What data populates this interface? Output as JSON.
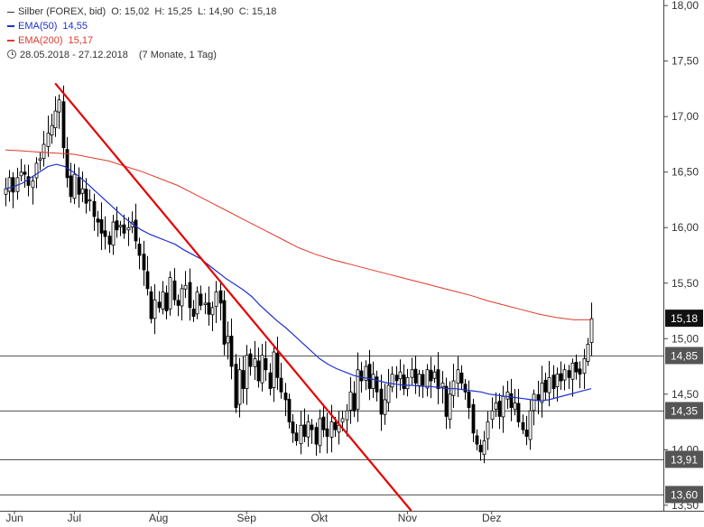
{
  "legend": {
    "instrument": "Silber (FOREX, bid)",
    "ohlc": {
      "open_label": "O:",
      "open": "15,02",
      "high_label": "H:",
      "high": "15,25",
      "low_label": "L:",
      "low": "14,90",
      "close_label": "C:",
      "close": "15,18"
    },
    "ema50": {
      "label": "EMA(50)",
      "value": "14,55",
      "color": "#1f2fd0"
    },
    "ema200": {
      "label": "EMA(200)",
      "value": "15,17",
      "color": "#e0392b"
    },
    "range": "28.05.2018 - 27.12.2018",
    "period": "(7 Monate, 1 Tag)",
    "range_icon": "clock-icon"
  },
  "chart_data": {
    "type": "candlestick",
    "x_labels": [
      "Jun",
      "Jul",
      "Aug",
      "Sep",
      "Okt",
      "Nov",
      "Dez"
    ],
    "y_ticks": [
      "18,00",
      "17,50",
      "17,00",
      "16,50",
      "16,00",
      "15,50",
      "15,00",
      "14,50",
      "14,00",
      "13,50"
    ],
    "ylim": [
      13.45,
      18.05
    ],
    "price_label": {
      "value": "15,18",
      "y": 15.18
    },
    "horizontal_levels": [
      {
        "value": 14.85,
        "label": "14,85"
      },
      {
        "value": 14.35,
        "label": "14,35"
      },
      {
        "value": 13.91,
        "label": "13,91"
      },
      {
        "value": 13.6,
        "label": "13,60"
      }
    ],
    "trendline": {
      "color": "#e60000",
      "from": {
        "day": 13,
        "price": 17.3
      },
      "to": {
        "day": 106,
        "price": 13.45
      }
    },
    "closes": [
      16.35,
      16.45,
      16.32,
      16.45,
      16.5,
      16.48,
      16.38,
      16.42,
      16.58,
      16.62,
      16.75,
      16.85,
      16.92,
      17.05,
      17.15,
      16.72,
      16.45,
      16.28,
      16.48,
      16.3,
      16.35,
      16.22,
      16.25,
      16.1,
      16.05,
      15.95,
      15.92,
      15.85,
      16.05,
      15.98,
      16.02,
      15.95,
      16.0,
      16.05,
      15.88,
      15.75,
      15.62,
      15.45,
      15.18,
      15.35,
      15.28,
      15.42,
      15.25,
      15.55,
      15.35,
      15.3,
      15.45,
      15.48,
      15.28,
      15.2,
      15.42,
      15.3,
      15.32,
      15.22,
      15.28,
      15.42,
      15.32,
      14.95,
      15.02,
      14.75,
      14.38,
      14.72,
      14.55,
      14.85,
      14.75,
      14.82,
      14.62,
      14.85,
      14.72,
      14.55,
      14.88,
      14.65,
      14.52,
      14.45,
      14.25,
      14.15,
      14.08,
      14.22,
      14.12,
      14.25,
      14.18,
      14.05,
      14.28,
      14.18,
      14.12,
      14.25,
      14.18,
      14.22,
      14.28,
      14.35,
      14.52,
      14.35,
      14.72,
      14.62,
      14.75,
      14.55,
      14.68,
      14.52,
      14.32,
      14.45,
      14.58,
      14.68,
      14.62,
      14.7,
      14.55,
      14.65,
      14.72,
      14.6,
      14.68,
      14.58,
      14.72,
      14.62,
      14.7,
      14.55,
      14.6,
      14.3,
      14.5,
      14.62,
      14.72,
      14.6,
      14.52,
      14.38,
      14.15,
      14.05,
      13.98,
      14.08,
      14.25,
      14.35,
      14.42,
      14.3,
      14.48,
      14.52,
      14.38,
      14.42,
      14.25,
      14.18,
      14.12,
      14.35,
      14.5,
      14.45,
      14.6,
      14.52,
      14.65,
      14.55,
      14.68,
      14.62,
      14.72,
      14.65,
      14.78,
      14.7,
      14.68,
      14.82,
      14.95,
      15.18
    ],
    "ema50": [
      16.35,
      16.37,
      16.4,
      16.45,
      16.5,
      16.55,
      16.57,
      16.55,
      16.5,
      16.44,
      16.37,
      16.3,
      16.23,
      16.16,
      16.09,
      16.03,
      15.98,
      15.94,
      15.91,
      15.88,
      15.85,
      15.8,
      15.76,
      15.72,
      15.66,
      15.6,
      15.54,
      15.49,
      15.44,
      15.38,
      15.3,
      15.23,
      15.16,
      15.1,
      15.03,
      14.96,
      14.89,
      14.82,
      14.77,
      14.73,
      14.7,
      14.67,
      14.65,
      14.64,
      14.62,
      14.6,
      14.59,
      14.58,
      14.58,
      14.57,
      14.57,
      14.56,
      14.55,
      14.55,
      14.54,
      14.53,
      14.52,
      14.5,
      14.49,
      14.48,
      14.47,
      14.46,
      14.45,
      14.44,
      14.45,
      14.47,
      14.49,
      14.51,
      14.53,
      14.55
    ],
    "ema200": [
      16.7,
      16.69,
      16.68,
      16.67,
      16.66,
      16.63,
      16.6,
      16.55,
      16.5,
      16.44,
      16.38,
      16.3,
      16.22,
      16.14,
      16.06,
      15.98,
      15.9,
      15.82,
      15.76,
      15.71,
      15.67,
      15.63,
      15.59,
      15.55,
      15.51,
      15.47,
      15.43,
      15.39,
      15.34,
      15.3,
      15.26,
      15.22,
      15.19,
      15.17,
      15.17
    ]
  }
}
